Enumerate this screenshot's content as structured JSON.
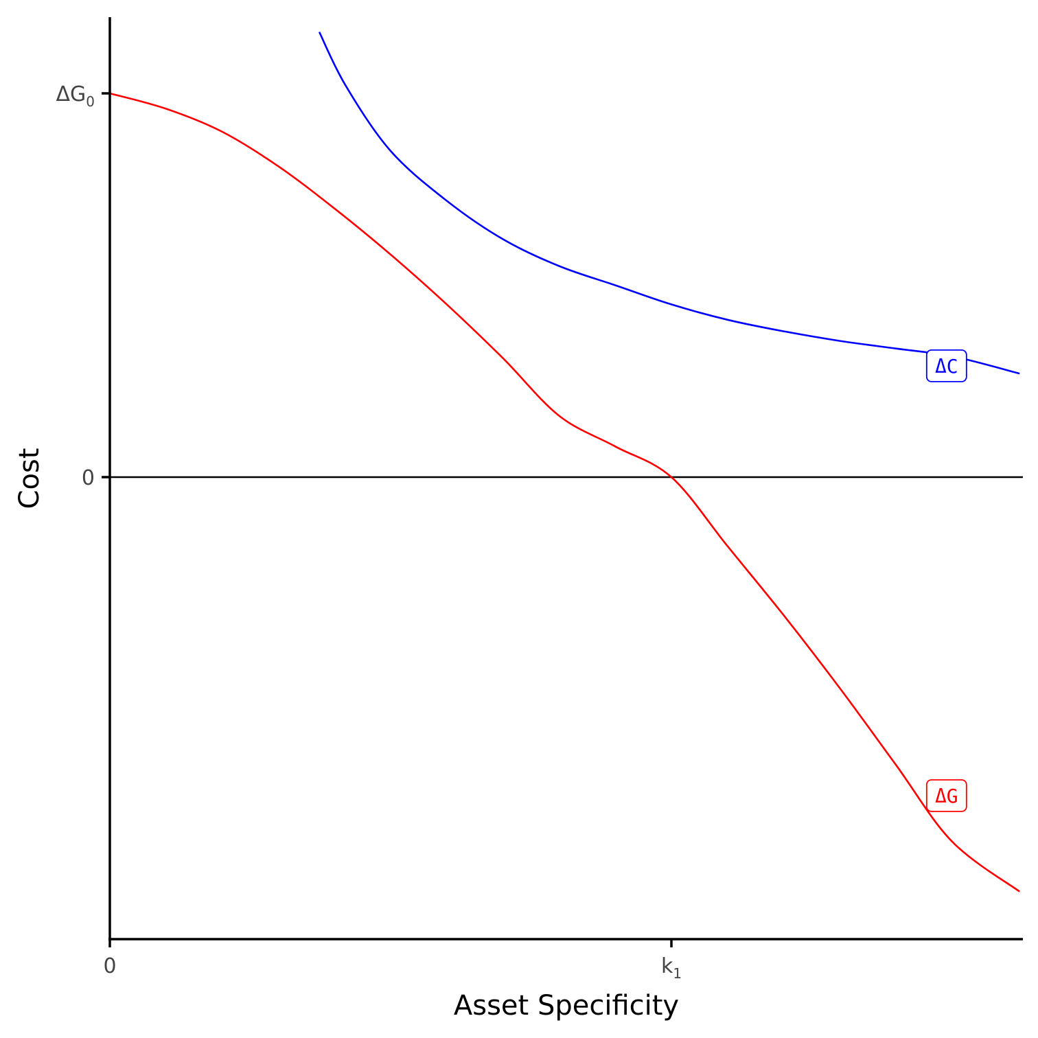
{
  "chart_data": {
    "type": "line",
    "xlabel": "Asset Specificity",
    "ylabel": "Cost",
    "xlim": [
      0,
      1.62
    ],
    "ylim": [
      -1.2,
      1.2
    ],
    "grid": false,
    "legend": "none",
    "x_ticks": [
      {
        "value": 0,
        "label": "0",
        "sub": ""
      },
      {
        "value": 1,
        "label": "k",
        "sub": "1"
      }
    ],
    "y_ticks": [
      {
        "value": 0,
        "label": "0",
        "sub": ""
      },
      {
        "value": 1,
        "label": "ΔG",
        "sub": "0"
      }
    ],
    "hline": 0,
    "series": [
      {
        "name": "ΔG",
        "color": "#ff0000",
        "x": [
          0,
          0.1,
          0.2,
          0.3,
          0.4,
          0.5,
          0.6,
          0.7,
          0.8,
          0.9,
          1.0,
          1.1,
          1.2,
          1.3,
          1.4,
          1.5,
          1.62
        ],
        "y": [
          1.0,
          0.96,
          0.9,
          0.81,
          0.7,
          0.58,
          0.45,
          0.31,
          0.16,
          0.08,
          0.0,
          -0.18,
          -0.36,
          -0.55,
          -0.75,
          -0.95,
          -1.08
        ]
      },
      {
        "name": "ΔC",
        "color": "#0000ff",
        "x": [
          0.373,
          0.42,
          0.5,
          0.6,
          0.7,
          0.8,
          0.9,
          1.0,
          1.1,
          1.2,
          1.3,
          1.4,
          1.5,
          1.62
        ],
        "y": [
          1.16,
          1.02,
          0.85,
          0.72,
          0.62,
          0.55,
          0.5,
          0.45,
          0.41,
          0.38,
          0.355,
          0.335,
          0.315,
          0.27
        ]
      }
    ],
    "annotations": [
      {
        "text": "ΔC",
        "x": 1.49,
        "y": 0.29,
        "color": "#0000ff"
      },
      {
        "text": "ΔG",
        "x": 1.49,
        "y": -0.83,
        "color": "#ff0000"
      }
    ]
  }
}
